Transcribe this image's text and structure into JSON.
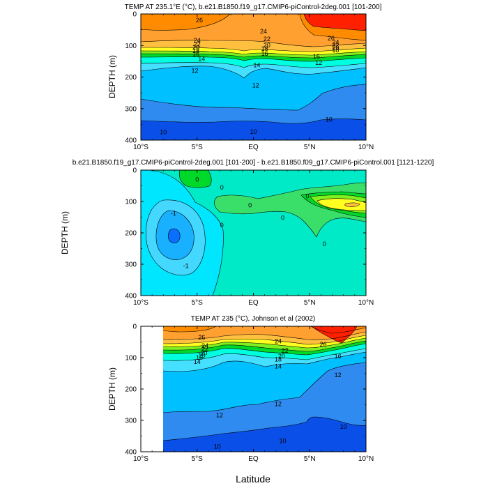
{
  "figure": {
    "xlabel_bottom": "Latitude",
    "colors": {
      "deep_blue": "#0a4fe8",
      "mid_blue": "#2f8bf0",
      "light_blue": "#00c0ff",
      "cyan": "#45e0ff",
      "aqua": "#00ffe0",
      "green": "#00d82a",
      "lime": "#7fef1f",
      "yellow": "#ffff20",
      "light_orange": "#ffc040",
      "orange": "#ff8c00",
      "red": "#ff2000",
      "zero_fill": "#00eac8",
      "neg1_fill": "#00e6ff",
      "neg2_fill": "#19b0ff",
      "neg3_fill": "#0a6fff"
    }
  },
  "chart_data": [
    {
      "id": "panel1",
      "type": "contour",
      "title": "TEMP AT 235.1°E (°C), b.e21.B1850.f19_g17.CMIP6-piControl-2deg.001 [101-200]",
      "ylabel": "DEPTH (m)",
      "xlabel": "",
      "xlim": [
        -10,
        10
      ],
      "ylim": [
        400,
        0
      ],
      "xticks": [
        -10,
        -5,
        0,
        5,
        10
      ],
      "xtick_labels": [
        "10°S",
        "5°S",
        "EQ",
        "5°N",
        "10°N"
      ],
      "yticks": [
        0,
        100,
        200,
        300,
        400
      ],
      "ytick_labels": [
        "0",
        "100",
        "200",
        "300",
        "400"
      ],
      "contour_labels": [
        {
          "text": "26",
          "lat": -4.8,
          "depth": 20
        },
        {
          "text": "24",
          "lat": -5.0,
          "depth": 84
        },
        {
          "text": "22",
          "lat": -5.0,
          "depth": 96
        },
        {
          "text": "20",
          "lat": -5.1,
          "depth": 106
        },
        {
          "text": "18",
          "lat": -5.1,
          "depth": 117
        },
        {
          "text": "16",
          "lat": -5.1,
          "depth": 127
        },
        {
          "text": "14",
          "lat": -4.6,
          "depth": 143
        },
        {
          "text": "12",
          "lat": -5.2,
          "depth": 180
        },
        {
          "text": "24",
          "lat": 0.9,
          "depth": 55
        },
        {
          "text": "22",
          "lat": 1.2,
          "depth": 80
        },
        {
          "text": "20",
          "lat": 1.2,
          "depth": 99
        },
        {
          "text": "18",
          "lat": 1.0,
          "depth": 111
        },
        {
          "text": "16",
          "lat": 1.0,
          "depth": 126
        },
        {
          "text": "14",
          "lat": 0.3,
          "depth": 162
        },
        {
          "text": "12",
          "lat": 0.2,
          "depth": 227
        },
        {
          "text": "26",
          "lat": 6.9,
          "depth": 77
        },
        {
          "text": "24",
          "lat": 7.3,
          "depth": 90
        },
        {
          "text": "22",
          "lat": 7.3,
          "depth": 99
        },
        {
          "text": "20",
          "lat": 7.3,
          "depth": 107
        },
        {
          "text": "18",
          "lat": 7.3,
          "depth": 115
        },
        {
          "text": "16",
          "lat": 5.6,
          "depth": 135
        },
        {
          "text": "12",
          "lat": 5.8,
          "depth": 155
        },
        {
          "text": "10",
          "lat": -8.0,
          "depth": 375
        },
        {
          "text": "10",
          "lat": 0.0,
          "depth": 373
        },
        {
          "text": "10",
          "lat": 6.7,
          "depth": 335
        }
      ]
    },
    {
      "id": "panel2",
      "type": "contour",
      "title": "b.e21.B1850.f19_g17.CMIP6-piControl-2deg.001 [101-200] - b.e21.B1850.f09_g17.CMIP6-piControl.001 [1121-1220]",
      "ylabel": "DEPTH (m)",
      "xlabel": "",
      "xlim": [
        -10,
        10
      ],
      "ylim": [
        400,
        0
      ],
      "xticks": [
        -10,
        -5,
        0,
        5,
        10
      ],
      "xtick_labels": [
        "10°S",
        "5°S",
        "EQ",
        "5°N",
        "10°N"
      ],
      "yticks": [
        0,
        100,
        200,
        300,
        400
      ],
      "ytick_labels": [
        "0",
        "100",
        "200",
        "300",
        "400"
      ],
      "contour_labels": [
        {
          "text": "-1",
          "lat": -7.1,
          "depth": 138
        },
        {
          "text": "-1",
          "lat": -6.0,
          "depth": 305
        },
        {
          "text": "0",
          "lat": -2.8,
          "depth": 55
        },
        {
          "text": "0",
          "lat": -2.8,
          "depth": 175
        },
        {
          "text": "0",
          "lat": -0.3,
          "depth": 112
        },
        {
          "text": "0",
          "lat": 2.6,
          "depth": 152
        },
        {
          "text": "0",
          "lat": 4.8,
          "depth": 83
        },
        {
          "text": "0",
          "lat": 6.3,
          "depth": 235
        },
        {
          "text": "0",
          "lat": -5.0,
          "depth": 30
        }
      ]
    },
    {
      "id": "panel3",
      "type": "contour",
      "title": "TEMP AT 235 (°C), Johnson et al (2002)",
      "ylabel": "DEPTH (m)",
      "xlabel": "Latitude",
      "xlim": [
        -10,
        10
      ],
      "ylim": [
        400,
        0
      ],
      "xticks": [
        -10,
        -5,
        0,
        5,
        10
      ],
      "xtick_labels": [
        "10°S",
        "5°S",
        "EQ",
        "5°N",
        "10°N"
      ],
      "yticks": [
        0,
        100,
        200,
        300,
        400
      ],
      "ytick_labels": [
        "0",
        "100",
        "200",
        "300",
        "400"
      ],
      "data_xrange": [
        -8,
        10
      ],
      "contour_labels": [
        {
          "text": "26",
          "lat": -4.6,
          "depth": 35
        },
        {
          "text": "24",
          "lat": -4.3,
          "depth": 62
        },
        {
          "text": "22",
          "lat": -4.3,
          "depth": 72
        },
        {
          "text": "20",
          "lat": -4.4,
          "depth": 85
        },
        {
          "text": "18",
          "lat": -4.6,
          "depth": 93
        },
        {
          "text": "16",
          "lat": -4.8,
          "depth": 100
        },
        {
          "text": "14",
          "lat": -5.0,
          "depth": 113
        },
        {
          "text": "24",
          "lat": 2.2,
          "depth": 48
        },
        {
          "text": "22",
          "lat": 2.8,
          "depth": 78
        },
        {
          "text": "20",
          "lat": 2.5,
          "depth": 95
        },
        {
          "text": "18",
          "lat": 2.2,
          "depth": 106
        },
        {
          "text": "14",
          "lat": 2.2,
          "depth": 128
        },
        {
          "text": "12",
          "lat": 7.5,
          "depth": 155
        },
        {
          "text": "12",
          "lat": 2.2,
          "depth": 248
        },
        {
          "text": "12",
          "lat": -3.0,
          "depth": 283
        },
        {
          "text": "26",
          "lat": 6.2,
          "depth": 58
        },
        {
          "text": "10",
          "lat": 8.0,
          "depth": 320
        },
        {
          "text": "10",
          "lat": 2.6,
          "depth": 365
        },
        {
          "text": "10",
          "lat": -3.2,
          "depth": 383
        },
        {
          "text": "16",
          "lat": 7.5,
          "depth": 95
        }
      ]
    }
  ]
}
